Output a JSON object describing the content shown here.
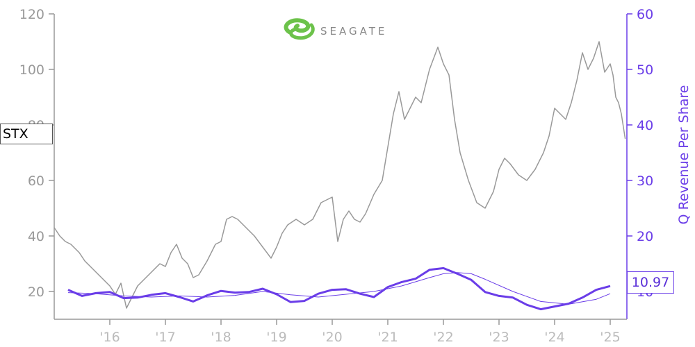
{
  "chart_data": {
    "type": "line",
    "ticker": "STX",
    "logo": {
      "name": "seagate-logo",
      "text": "SEAGATE",
      "color": "#6cc24a"
    },
    "left_axis": {
      "ticks": [
        20,
        40,
        60,
        80,
        100,
        120
      ],
      "ylim": [
        10,
        120
      ],
      "color": "#999999"
    },
    "right_axis": {
      "label": "Q Revenue Per Share",
      "ticks": [
        10,
        20,
        30,
        40,
        50,
        60
      ],
      "ylim": [
        5,
        60
      ],
      "color": "#6a3de8"
    },
    "x_axis": {
      "tick_labels": [
        "'16",
        "'17",
        "'18",
        "'19",
        "'20",
        "'21",
        "'22",
        "'23",
        "'24",
        "'25"
      ],
      "tick_values": [
        2016,
        2017,
        2018,
        2019,
        2020,
        2021,
        2022,
        2023,
        2024,
        2025
      ],
      "xlim": [
        2015.0,
        2025.3
      ]
    },
    "current_value_label": "10.97",
    "series": [
      {
        "axis": "left",
        "color": "#999999",
        "x": [
          2015.0,
          2015.1,
          2015.2,
          2015.3,
          2015.45,
          2015.55,
          2015.7,
          2015.85,
          2016.0,
          2016.1,
          2016.2,
          2016.3,
          2016.4,
          2016.5,
          2016.6,
          2016.75,
          2016.9,
          2017.0,
          2017.1,
          2017.2,
          2017.3,
          2017.4,
          2017.5,
          2017.6,
          2017.75,
          2017.9,
          2018.0,
          2018.1,
          2018.2,
          2018.3,
          2018.45,
          2018.6,
          2018.75,
          2018.9,
          2019.0,
          2019.1,
          2019.2,
          2019.35,
          2019.5,
          2019.65,
          2019.8,
          2019.9,
          2020.0,
          2020.1,
          2020.2,
          2020.3,
          2020.4,
          2020.5,
          2020.6,
          2020.75,
          2020.9,
          2021.0,
          2021.1,
          2021.2,
          2021.3,
          2021.4,
          2021.5,
          2021.6,
          2021.75,
          2021.9,
          2022.0,
          2022.1,
          2022.2,
          2022.3,
          2022.45,
          2022.6,
          2022.75,
          2022.9,
          2023.0,
          2023.1,
          2023.2,
          2023.35,
          2023.5,
          2023.65,
          2023.8,
          2023.9,
          2024.0,
          2024.1,
          2024.2,
          2024.3,
          2024.4,
          2024.5,
          2024.6,
          2024.7,
          2024.8,
          2024.9,
          2025.0,
          2025.05,
          2025.1,
          2025.15,
          2025.2,
          2025.27
        ],
        "values": [
          43,
          40,
          38,
          37,
          34,
          31,
          28,
          25,
          22,
          19,
          23,
          14,
          18,
          22,
          24,
          27,
          30,
          29,
          34,
          37,
          32,
          30,
          25,
          26,
          31,
          37,
          38,
          46,
          47,
          46,
          43,
          40,
          36,
          32,
          36,
          41,
          44,
          46,
          44,
          46,
          52,
          53,
          54,
          38,
          46,
          49,
          46,
          45,
          48,
          55,
          60,
          72,
          84,
          92,
          82,
          86,
          90,
          88,
          100,
          108,
          102,
          98,
          82,
          70,
          60,
          52,
          50,
          56,
          64,
          68,
          66,
          62,
          60,
          64,
          70,
          76,
          86,
          84,
          82,
          88,
          96,
          106,
          100,
          104,
          110,
          99,
          102,
          98,
          90,
          88,
          84,
          75
        ]
      },
      {
        "axis": "right",
        "color": "#6a3de8",
        "x": [
          2015.25,
          2015.5,
          2015.75,
          2016.0,
          2016.25,
          2016.5,
          2016.75,
          2017.0,
          2017.25,
          2017.5,
          2017.75,
          2018.0,
          2018.25,
          2018.5,
          2018.75,
          2019.0,
          2019.25,
          2019.5,
          2019.75,
          2020.0,
          2020.25,
          2020.5,
          2020.75,
          2021.0,
          2021.25,
          2021.5,
          2021.75,
          2022.0,
          2022.25,
          2022.5,
          2022.75,
          2023.0,
          2023.25,
          2023.5,
          2023.75,
          2024.0,
          2024.25,
          2024.5,
          2024.75,
          2025.0
        ],
        "values": [
          10.3,
          9.2,
          9.7,
          9.9,
          8.8,
          8.9,
          9.4,
          9.7,
          9.0,
          8.2,
          9.3,
          10.1,
          9.8,
          9.9,
          10.5,
          9.5,
          8.1,
          8.3,
          9.6,
          10.3,
          10.4,
          9.6,
          9.0,
          10.8,
          11.7,
          12.3,
          13.9,
          14.2,
          13.2,
          12.1,
          9.9,
          9.2,
          8.9,
          7.6,
          6.8,
          7.3,
          7.8,
          8.9,
          10.3,
          10.97
        ]
      },
      {
        "axis": "right",
        "color": "#6a3de8",
        "x": [
          2015.25,
          2015.75,
          2016.25,
          2016.75,
          2017.25,
          2017.75,
          2018.25,
          2018.75,
          2019.25,
          2019.75,
          2020.25,
          2020.75,
          2021.25,
          2021.75,
          2022.0,
          2022.25,
          2022.5,
          2022.75,
          2023.25,
          2023.75,
          2024.25,
          2024.75,
          2025.0
        ],
        "values": [
          9.8,
          9.6,
          9.2,
          9.0,
          9.2,
          9.0,
          9.3,
          10.0,
          9.4,
          9.0,
          9.5,
          10.0,
          11.0,
          12.5,
          13.2,
          13.4,
          13.2,
          12.2,
          10.0,
          8.2,
          7.7,
          8.6,
          9.6
        ]
      }
    ]
  }
}
